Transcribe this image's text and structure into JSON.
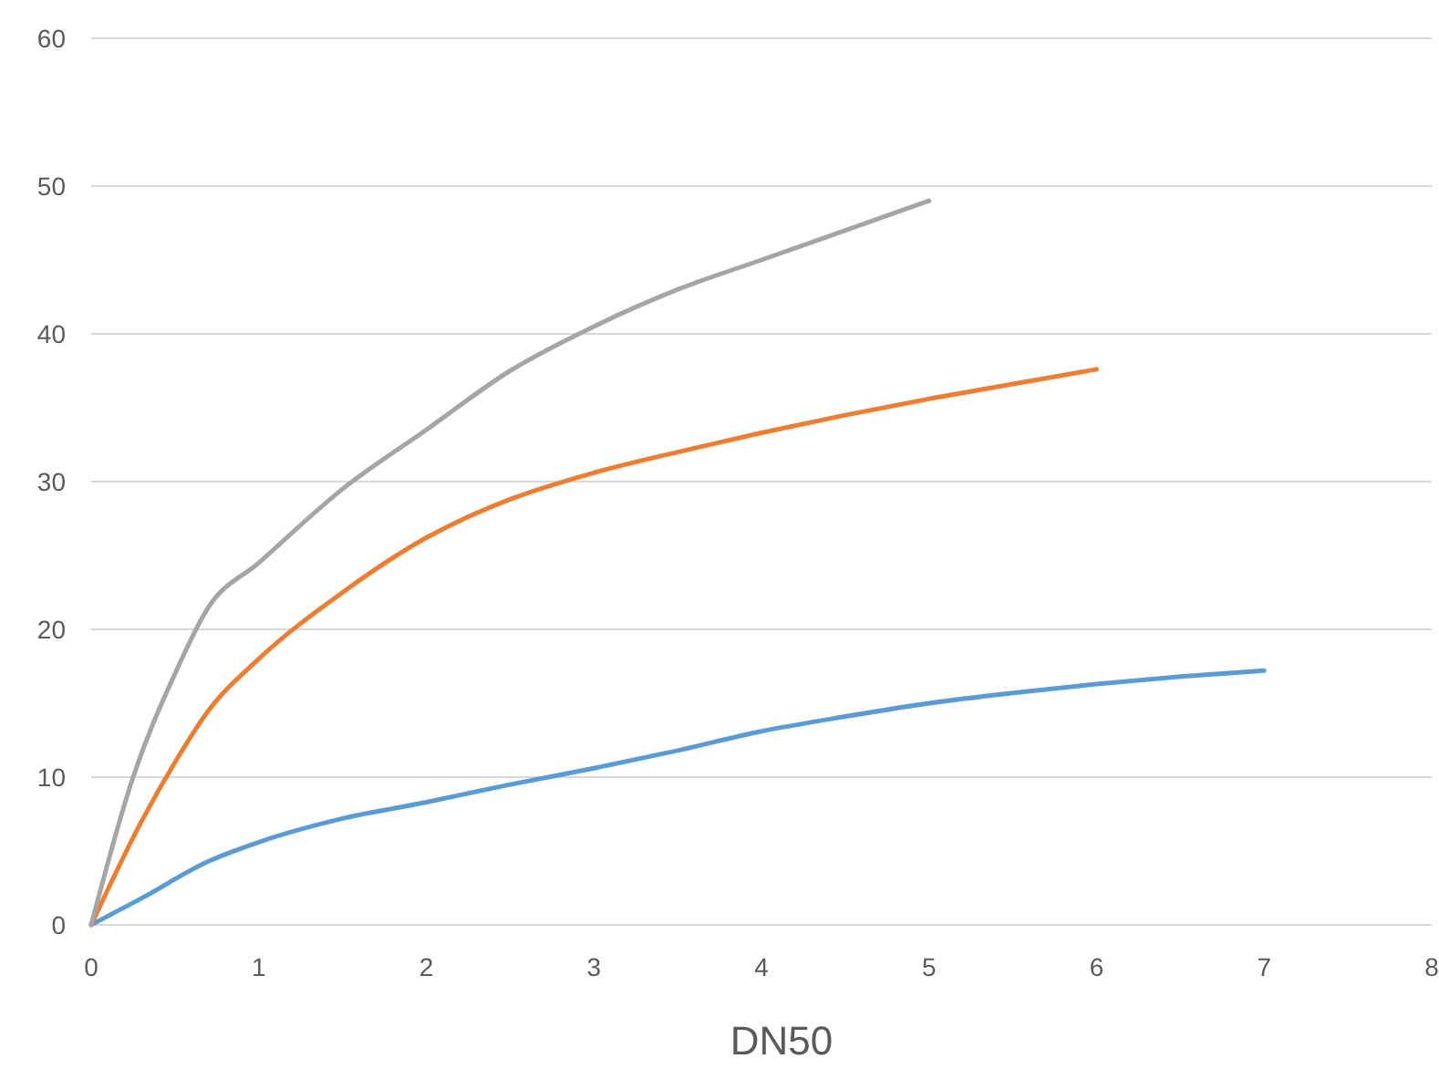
{
  "chart_data": {
    "type": "line",
    "xlabel": "DN50",
    "xlim": [
      0,
      8
    ],
    "xticks": [
      0,
      1,
      2,
      3,
      4,
      5,
      6,
      7,
      8
    ],
    "ylim": [
      0,
      60
    ],
    "yticks": [
      0,
      10,
      20,
      30,
      40,
      50,
      60
    ],
    "grid": "y",
    "marker": "none",
    "line_style": "solid",
    "series": [
      {
        "color": "#5b9bd5",
        "x": [
          0,
          0.3,
          0.7,
          1,
          1.5,
          2,
          2.5,
          3,
          3.5,
          4,
          4.5,
          5,
          5.5,
          6,
          6.5,
          7
        ],
        "values": [
          0,
          1.8,
          4.3,
          5.6,
          7.2,
          8.3,
          9.5,
          10.6,
          11.8,
          13.1,
          14.1,
          15,
          15.7,
          16.3,
          16.8,
          17.2
        ]
      },
      {
        "color": "#ed7d31",
        "x": [
          0,
          0.3,
          0.5,
          0.7,
          1,
          1.5,
          2,
          2.5,
          3,
          3.5,
          4,
          4.5,
          5,
          5.5,
          6
        ],
        "values": [
          0,
          7,
          11,
          14.5,
          18,
          22.5,
          26.2,
          28.8,
          30.6,
          32,
          33.3,
          34.5,
          35.6,
          36.6,
          37.6
        ]
      },
      {
        "color": "#a5a5a5",
        "x": [
          0,
          0.25,
          0.5,
          0.7,
          1,
          1.5,
          2,
          2.5,
          3,
          3.5,
          4,
          4.5,
          5
        ],
        "values": [
          0,
          10,
          17,
          21.5,
          24.5,
          29.5,
          33.5,
          37.5,
          40.5,
          43,
          45,
          47,
          49
        ]
      }
    ]
  }
}
